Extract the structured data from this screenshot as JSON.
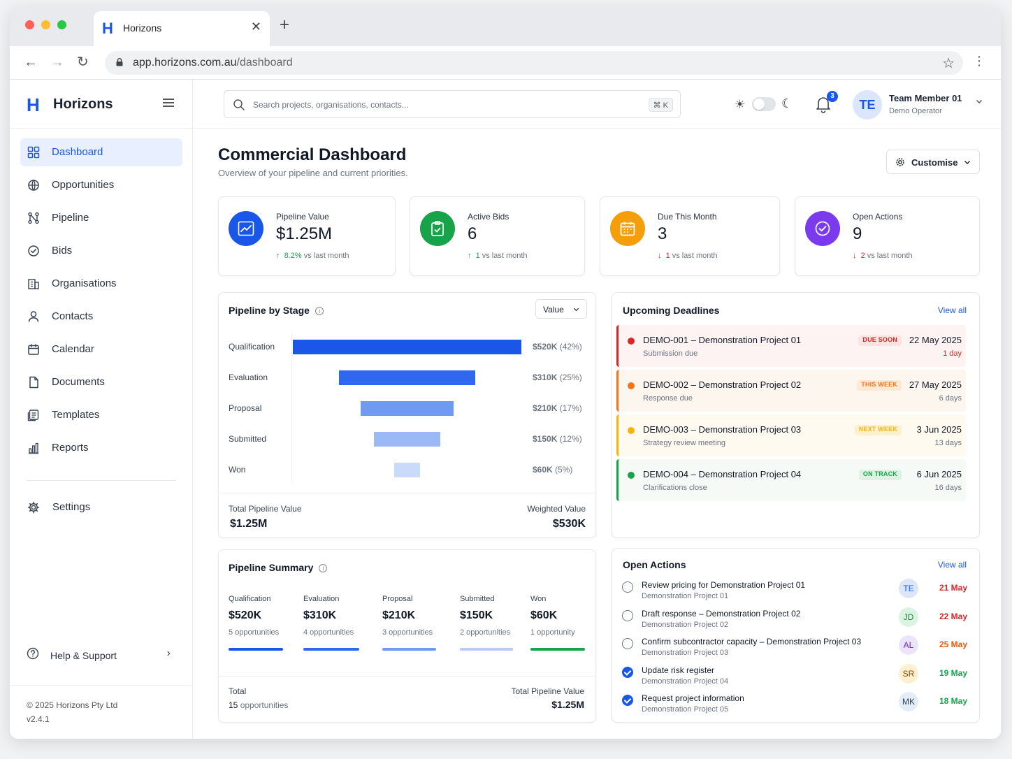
{
  "browser": {
    "tab_title": "Horizons",
    "tab_logo": "H",
    "url_host": "app.horizons.com.au",
    "url_path": "/dashboard",
    "traffic_lights": [
      "#ff5f57",
      "#febc2e",
      "#28c840"
    ]
  },
  "app": {
    "logo": "H",
    "name": "Horizons",
    "brand_color": "#1a56e8"
  },
  "sidebar": {
    "items": [
      {
        "label": "Dashboard",
        "icon": "grid-icon",
        "active": true
      },
      {
        "label": "Opportunities",
        "icon": "globe-icon",
        "active": false
      },
      {
        "label": "Pipeline",
        "icon": "pipeline-icon",
        "active": false
      },
      {
        "label": "Bids",
        "icon": "check-shield-icon",
        "active": false
      },
      {
        "label": "Organisations",
        "icon": "building-icon",
        "active": false
      },
      {
        "label": "Contacts",
        "icon": "person-icon",
        "active": false
      },
      {
        "label": "Calendar",
        "icon": "calendar-icon",
        "active": false
      },
      {
        "label": "Documents",
        "icon": "document-icon",
        "active": false
      },
      {
        "label": "Templates",
        "icon": "templates-icon",
        "active": false
      },
      {
        "label": "Reports",
        "icon": "bar-chart-icon",
        "active": false
      }
    ],
    "settings_label": "Settings",
    "help_label": "Help & Support",
    "copyright": "© 2025 Horizons Pty Ltd",
    "version": "v2.4.1"
  },
  "topbar": {
    "search_placeholder": "Search projects, organisations, contacts...",
    "search_shortcut": "⌘ K",
    "notification_count": "3",
    "user_initials": "TE",
    "user_name": "Team Member 01",
    "user_role": "Demo Operator"
  },
  "page": {
    "title": "Commercial Dashboard",
    "subtitle": "Overview of your pipeline and current priorities.",
    "customise_label": "Customise"
  },
  "kpis": [
    {
      "label": "Pipeline Value",
      "value": "$1.25M",
      "delta": "8.2%",
      "delta_suffix": "vs last month",
      "direction": "up",
      "color": "#1a56e8",
      "icon": "trend-up-icon"
    },
    {
      "label": "Active Bids",
      "value": "6",
      "delta": "1",
      "delta_suffix": "vs last month",
      "direction": "up",
      "color": "#16a34a",
      "icon": "clipboard-icon"
    },
    {
      "label": "Due This Month",
      "value": "3",
      "delta": "1",
      "delta_suffix": "vs last month",
      "direction": "down",
      "color": "#f59e0b",
      "icon": "calendar-icon"
    },
    {
      "label": "Open Actions",
      "value": "9",
      "delta": "2",
      "delta_suffix": "vs last month",
      "direction": "down",
      "color": "#7c3aed",
      "icon": "check-circle-icon"
    }
  ],
  "pipeline_by_stage": {
    "title": "Pipeline by Stage",
    "select_value": "Value",
    "total_label": "Total Pipeline Value",
    "total_value": "$1.25M",
    "weighted_label": "Weighted Value",
    "weighted_value": "$530K"
  },
  "chart_data": {
    "type": "bar",
    "orientation": "horizontal-funnel",
    "categories": [
      "Qualification",
      "Evaluation",
      "Proposal",
      "Submitted",
      "Won"
    ],
    "values": [
      520,
      310,
      210,
      150,
      60
    ],
    "value_labels": [
      "$520K",
      "$310K",
      "$210K",
      "$150K",
      "$60K"
    ],
    "percent_labels": [
      "(42%)",
      "(25%)",
      "(17%)",
      "(12%)",
      "(5%)"
    ],
    "colors": [
      "#1a56e8",
      "#2f68ee",
      "#6f9af2",
      "#9ab9f5",
      "#c9dafb"
    ],
    "unit": "$K"
  },
  "pipeline_summary": {
    "title": "Pipeline Summary",
    "stages": [
      {
        "name": "Qualification",
        "value": "$520K",
        "count": "5 opportunities",
        "color": "#1a56e8"
      },
      {
        "name": "Evaluation",
        "value": "$310K",
        "count": "4 opportunities",
        "color": "#2f68ee"
      },
      {
        "name": "Proposal",
        "value": "$210K",
        "count": "3 opportunities",
        "color": "#6f9af2"
      },
      {
        "name": "Submitted",
        "value": "$150K",
        "count": "2 opportunities",
        "color": "#b6cdf8"
      },
      {
        "name": "Won",
        "value": "$60K",
        "count": "1 opportunity",
        "color": "#16a34a"
      }
    ],
    "total_label": "Total",
    "total_count": "15",
    "total_count_suffix": "opportunities",
    "total_value_label": "Total Pipeline Value",
    "total_value": "$1.25M"
  },
  "deadlines": {
    "title": "Upcoming Deadlines",
    "view_all": "View all",
    "items": [
      {
        "title": "DEMO-001 – Demonstration Project 01",
        "sub": "Submission due",
        "badge": "DUE SOON",
        "date": "22 May 2025",
        "days": "1 day",
        "color": "#dc2626",
        "bg": "#fdf3f3",
        "badge_bg": "#fde2e2",
        "days_color": "#dc2626"
      },
      {
        "title": "DEMO-002 – Demonstration Project 02",
        "sub": "Response due",
        "badge": "THIS WEEK",
        "date": "27 May 2025",
        "days": "6 days",
        "color": "#f97316",
        "bg": "#fdf6ef",
        "badge_bg": "#fde9d6",
        "days_color": "#6b7280"
      },
      {
        "title": "DEMO-003 – Demonstration Project 03",
        "sub": "Strategy review meeting",
        "badge": "NEXT WEEK",
        "date": "3 Jun 2025",
        "days": "13 days",
        "color": "#f5b50a",
        "bg": "#fefaf0",
        "badge_bg": "#fdf0cf",
        "days_color": "#6b7280"
      },
      {
        "title": "DEMO-004 – Demonstration Project 04",
        "sub": "Clarifications close",
        "badge": "ON TRACK",
        "date": "6 Jun 2025",
        "days": "16 days",
        "color": "#16a34a",
        "bg": "#f5faf6",
        "badge_bg": "#dcf3e3",
        "days_color": "#6b7280"
      }
    ]
  },
  "actions": {
    "title": "Open Actions",
    "view_all": "View all",
    "items": [
      {
        "title": "Review pricing for Demonstration Project 01",
        "project": "Demonstration Project 01",
        "initials": "TE",
        "date": "21 May",
        "done": false,
        "avatar_bg": "#dbe6fb",
        "avatar_fg": "#1a56e8",
        "date_color": "#dc2626"
      },
      {
        "title": "Draft response – Demonstration Project 02",
        "project": "Demonstration Project 02",
        "initials": "JD",
        "date": "22 May",
        "done": false,
        "avatar_bg": "#dcf3e3",
        "avatar_fg": "#15803d",
        "date_color": "#dc2626"
      },
      {
        "title": "Confirm subcontractor capacity – Demonstration Project 03",
        "project": "Demonstration Project 03",
        "initials": "AL",
        "date": "25 May",
        "done": false,
        "avatar_bg": "#ece3fd",
        "avatar_fg": "#6d28d9",
        "date_color": "#ea580c"
      },
      {
        "title": "Update risk register",
        "project": "Demonstration Project 04",
        "initials": "SR",
        "date": "19 May",
        "done": true,
        "avatar_bg": "#fdf0cf",
        "avatar_fg": "#92400e",
        "date_color": "#16a34a"
      },
      {
        "title": "Request project information",
        "project": "Demonstration Project 05",
        "initials": "MK",
        "date": "18 May",
        "done": true,
        "avatar_bg": "#e3edf7",
        "avatar_fg": "#334155",
        "date_color": "#16a34a"
      }
    ]
  }
}
